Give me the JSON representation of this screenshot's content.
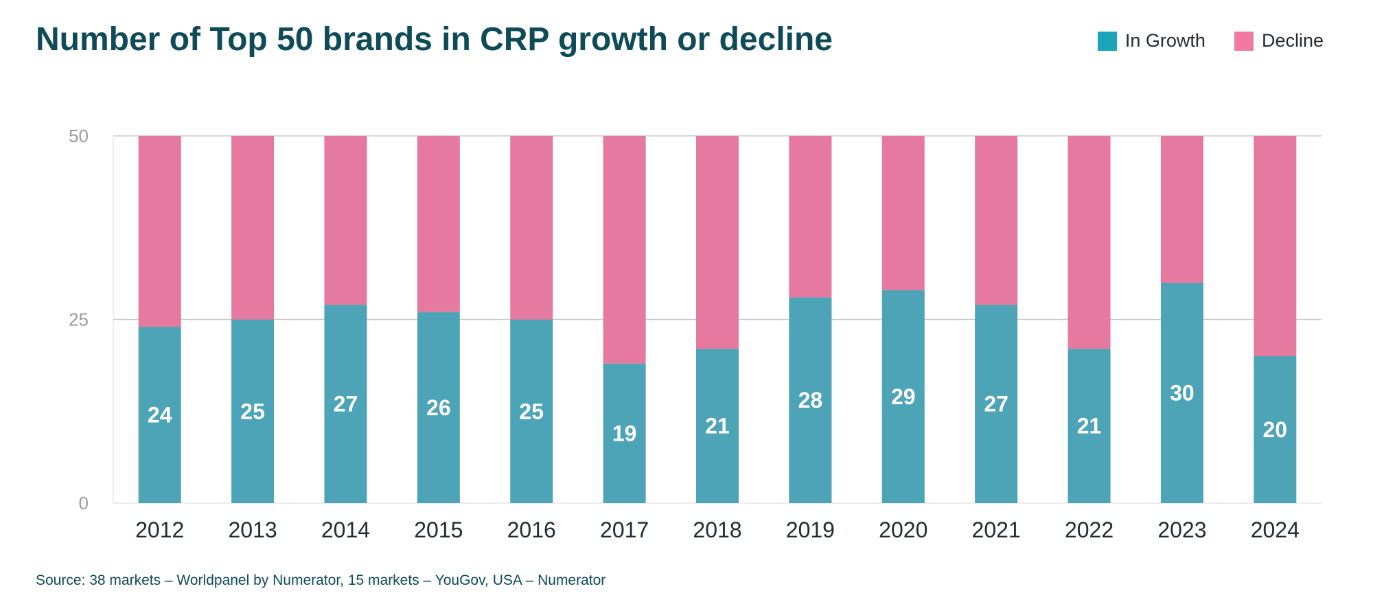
{
  "title": "Number of Top 50 brands in CRP growth or decline",
  "legend": {
    "growth_label": "In Growth",
    "decline_label": "Decline"
  },
  "source": "Source: 38 markets – Worldpanel by Numerator, 15 markets – YouGov, USA – Numerator",
  "colors": {
    "growth": "#4ca4b6",
    "decline": "#e5799f",
    "legend_growth": "#1aa5b8",
    "legend_decline": "#f07aa2",
    "gridline": "#cccccc",
    "axis": "#e6e6e6"
  },
  "chart_data": {
    "type": "bar",
    "stacked": true,
    "title": "Number of Top 50 brands in CRP growth or decline",
    "categories": [
      "2012",
      "2013",
      "2014",
      "2015",
      "2016",
      "2017",
      "2018",
      "2019",
      "2020",
      "2021",
      "2022",
      "2023",
      "2024"
    ],
    "series": [
      {
        "name": "In Growth",
        "values": [
          24,
          25,
          27,
          26,
          25,
          19,
          21,
          28,
          29,
          27,
          21,
          30,
          20
        ]
      },
      {
        "name": "Decline",
        "values": [
          26,
          25,
          23,
          24,
          25,
          31,
          29,
          22,
          21,
          23,
          29,
          20,
          30
        ]
      }
    ],
    "ylim": [
      0,
      50
    ],
    "yticks": [
      0,
      25,
      50
    ],
    "grid": true,
    "legend_position": "top-right",
    "xlabel": "",
    "ylabel": ""
  }
}
